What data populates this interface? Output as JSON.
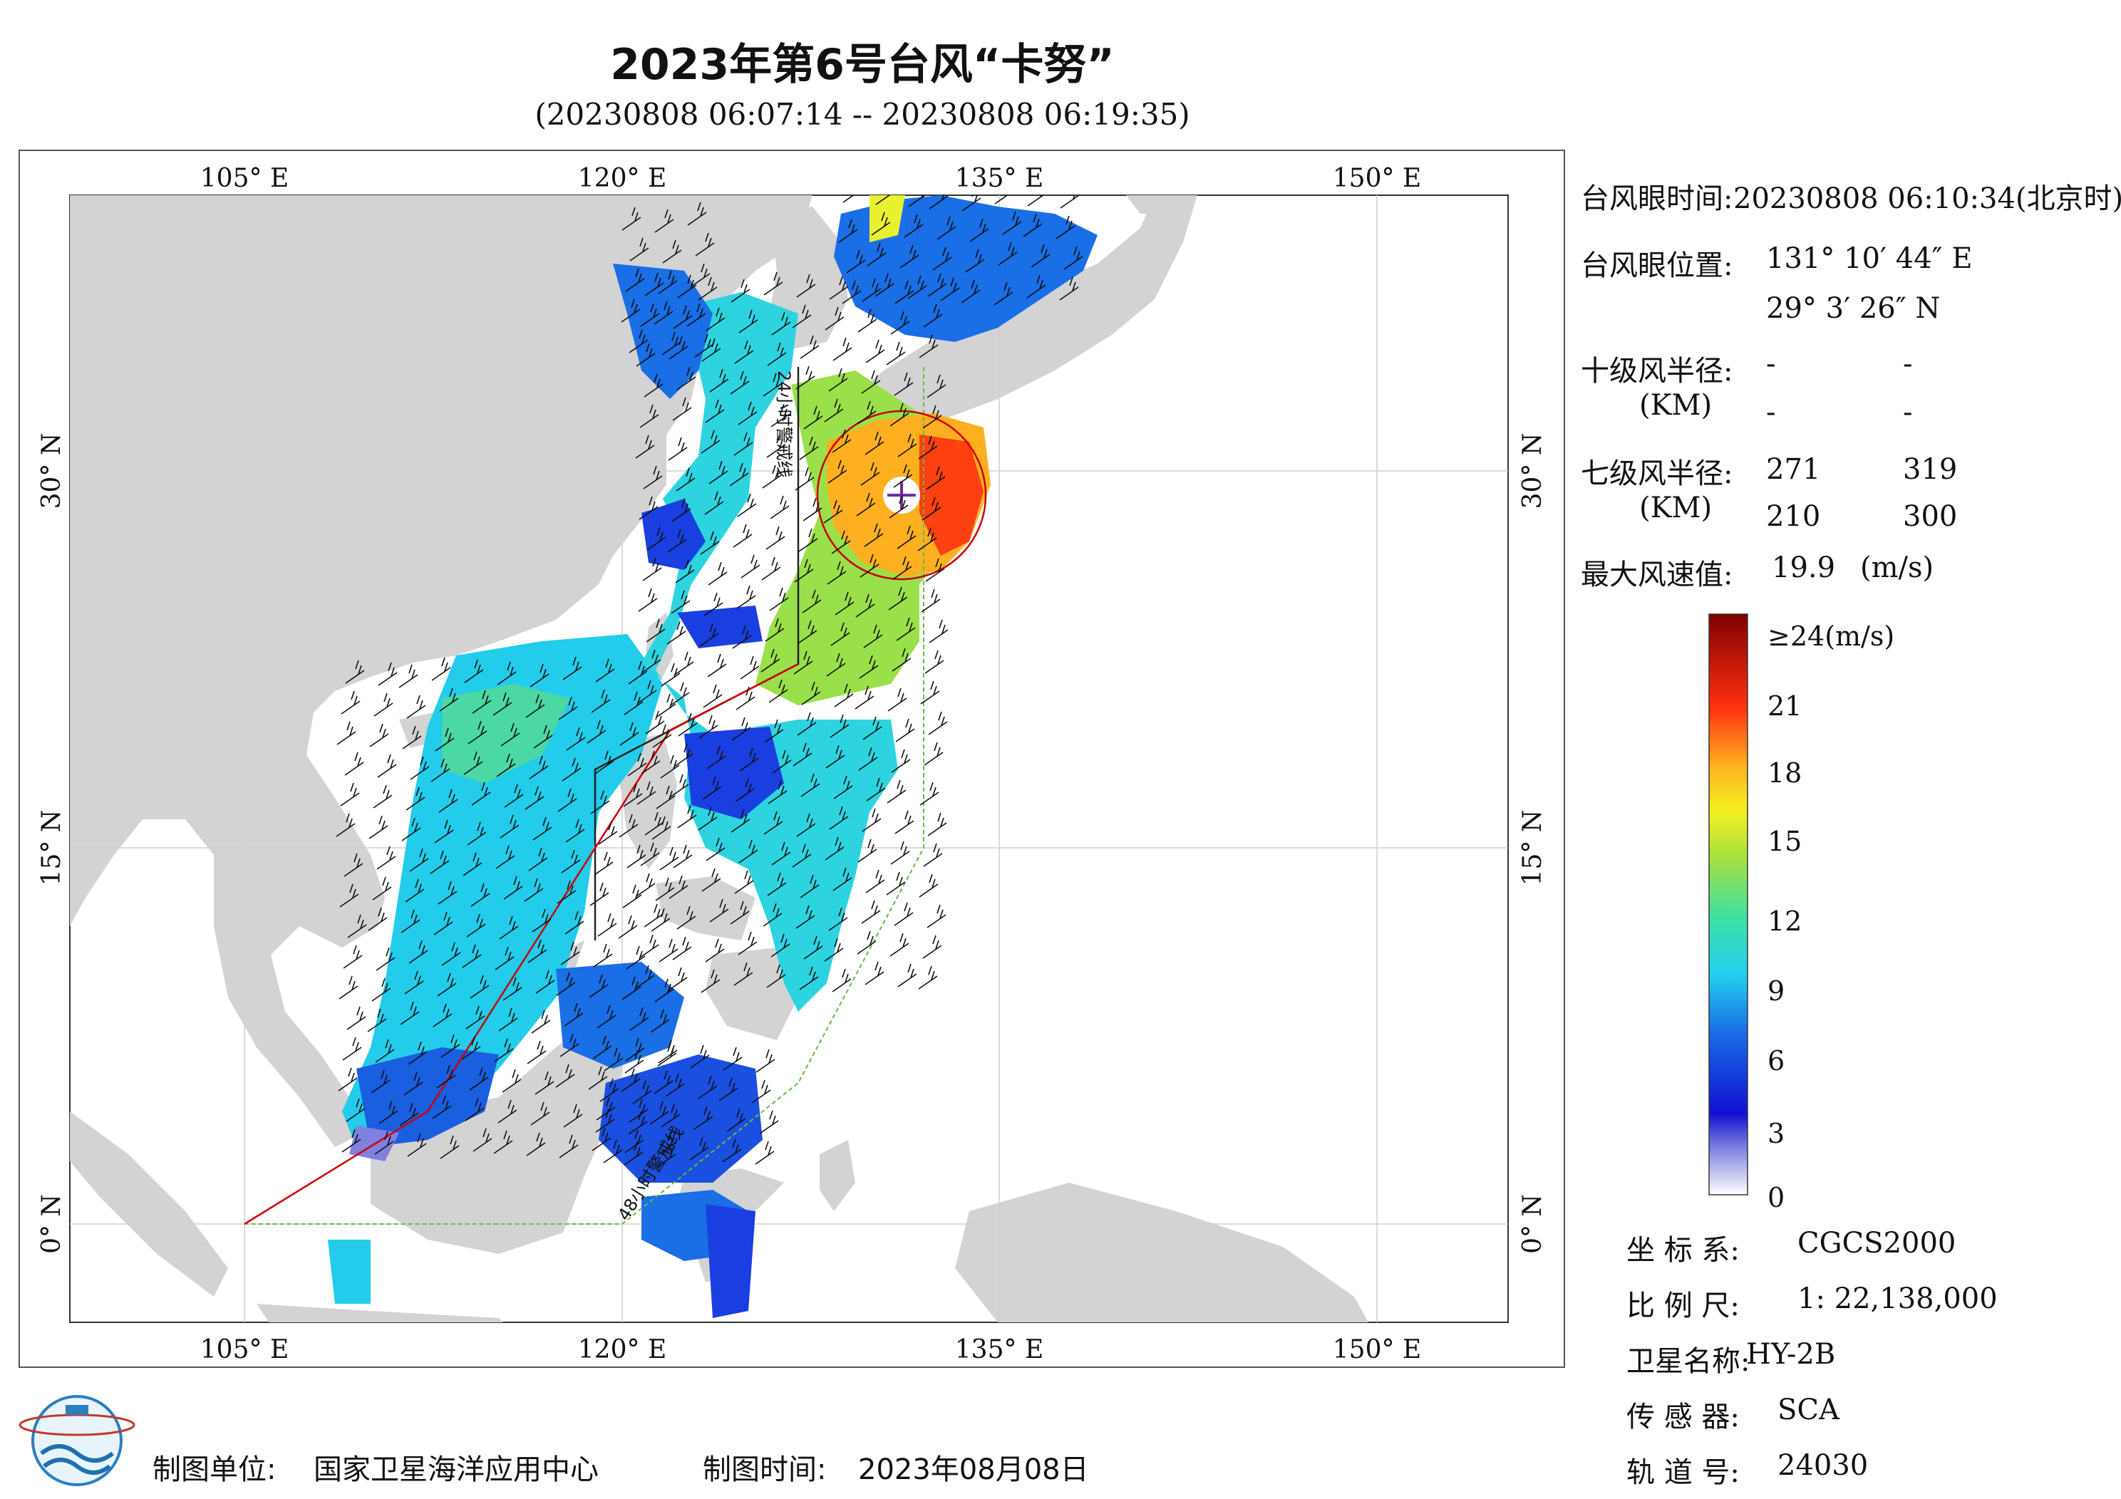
{
  "title": "2023年第6号台风“卡努”",
  "subtitle": "(20230808 06:07:14 -- 20230808 06:19:35)",
  "map": {
    "lon_labels": [
      "105° E",
      "120° E",
      "135° E",
      "150° E"
    ],
    "lat_labels": [
      "30° N",
      "15° N",
      "0° N"
    ],
    "line_24h": "24小时警戒线",
    "line_48h": "48小时警戒线",
    "colors": {
      "land": "#d3d3d3",
      "sea": "#ffffff",
      "typhoon_track": "#cc0000",
      "line_24h": "#222222",
      "line_48h": "#66bb44"
    }
  },
  "info": {
    "eye_time_label": "台风眼时间:",
    "eye_time_value": "20230808 06:10:34(北京时)",
    "eye_pos_label": "台风眼位置:",
    "eye_lon": "131° 10′ 44″ E",
    "eye_lat": "29° 3′ 26″ N",
    "r10_label": "十级风半径:",
    "r10_unit": "(KM)",
    "r10_values": [
      "-",
      "-",
      "-",
      "-"
    ],
    "r7_label": "七级风半径:",
    "r7_unit": "(KM)",
    "r7_values": [
      "271",
      "319",
      "210",
      "300"
    ],
    "max_wind_label": "最大风速值:",
    "max_wind_value": "19.9",
    "max_wind_unit": "(m/s)"
  },
  "colorbar": {
    "labels": [
      "≥24(m/s)",
      "21",
      "18",
      "15",
      "12",
      "9",
      "6",
      "3",
      "0"
    ]
  },
  "meta": {
    "crs_label": "坐 标 系:",
    "crs_value": "CGCS2000",
    "scale_label": "比 例 尺:",
    "scale_value": "1: 22,138,000",
    "satellite_label": "卫星名称:",
    "satellite_value": "HY-2B",
    "sensor_label": "传 感 器:",
    "sensor_value": "SCA",
    "orbit_label": "轨 道 号:",
    "orbit_value": "24030"
  },
  "footer": {
    "producer_label": "制图单位:",
    "producer_value": "国家卫星海洋应用中心",
    "date_label": "制图时间:",
    "date_value": "2023年08月08日"
  }
}
